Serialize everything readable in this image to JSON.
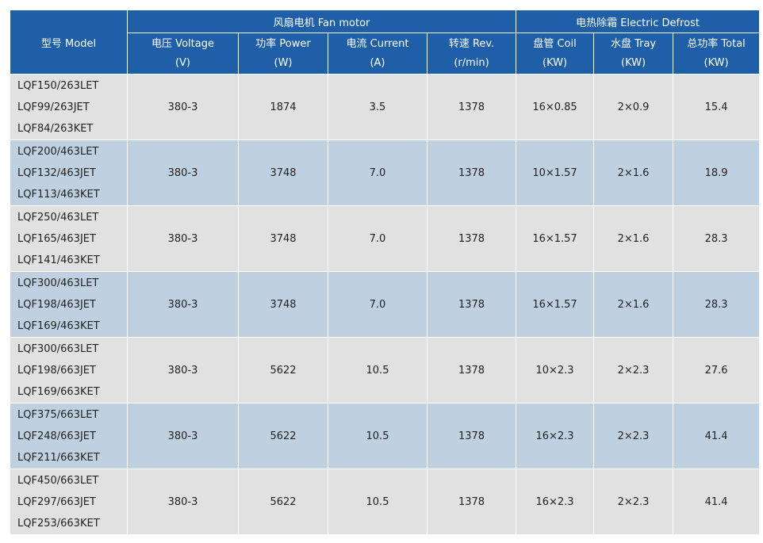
{
  "header": {
    "model": "型号 Model",
    "fan_motor": "风扇电机 Fan motor",
    "electric_defrost": "电热除霜 Electric Defrost",
    "columns": [
      {
        "label": "电压 Voltage",
        "unit": "(V)"
      },
      {
        "label": "功率 Power",
        "unit": "(W)"
      },
      {
        "label": "电流 Current",
        "unit": "(A)"
      },
      {
        "label": "转速 Rev.",
        "unit": "(r/min)"
      },
      {
        "label": "盘管 Coil",
        "unit": "(KW)"
      },
      {
        "label": "水盘 Tray",
        "unit": "(KW)"
      },
      {
        "label": "总功率 Total",
        "unit": "(KW)"
      }
    ]
  },
  "rows": [
    {
      "models": [
        "LQF150/263LET",
        "LQF99/263JET",
        "LQF84/263KET"
      ],
      "values": [
        "380-3",
        "1874",
        "3.5",
        "1378",
        "16×0.85",
        "2×0.9",
        "15.4"
      ]
    },
    {
      "models": [
        "LQF200/463LET",
        "LQF132/463JET",
        "LQF113/463KET"
      ],
      "values": [
        "380-3",
        "3748",
        "7.0",
        "1378",
        "10×1.57",
        "2×1.6",
        "18.9"
      ]
    },
    {
      "models": [
        "LQF250/463LET",
        "LQF165/463JET",
        "LQF141/463KET"
      ],
      "values": [
        "380-3",
        "3748",
        "7.0",
        "1378",
        "16×1.57",
        "2×1.6",
        "28.3"
      ]
    },
    {
      "models": [
        "LQF300/463LET",
        "LQF198/463JET",
        "LQF169/463KET"
      ],
      "values": [
        "380-3",
        "3748",
        "7.0",
        "1378",
        "16×1.57",
        "2×1.6",
        "28.3"
      ]
    },
    {
      "models": [
        "LQF300/663LET",
        "LQF198/663JET",
        "LQF169/663KET"
      ],
      "values": [
        "380-3",
        "5622",
        "10.5",
        "1378",
        "10×2.3",
        "2×2.3",
        "27.6"
      ]
    },
    {
      "models": [
        "LQF375/663LET",
        "LQF248/663JET",
        "LQF211/663KET"
      ],
      "values": [
        "380-3",
        "5622",
        "10.5",
        "1378",
        "16×2.3",
        "2×2.3",
        "41.4"
      ]
    },
    {
      "models": [
        "LQF450/663LET",
        "LQF297/663JET",
        "LQF253/663KET"
      ],
      "values": [
        "380-3",
        "5622",
        "10.5",
        "1378",
        "16×2.3",
        "2×2.3",
        "41.4"
      ]
    }
  ]
}
